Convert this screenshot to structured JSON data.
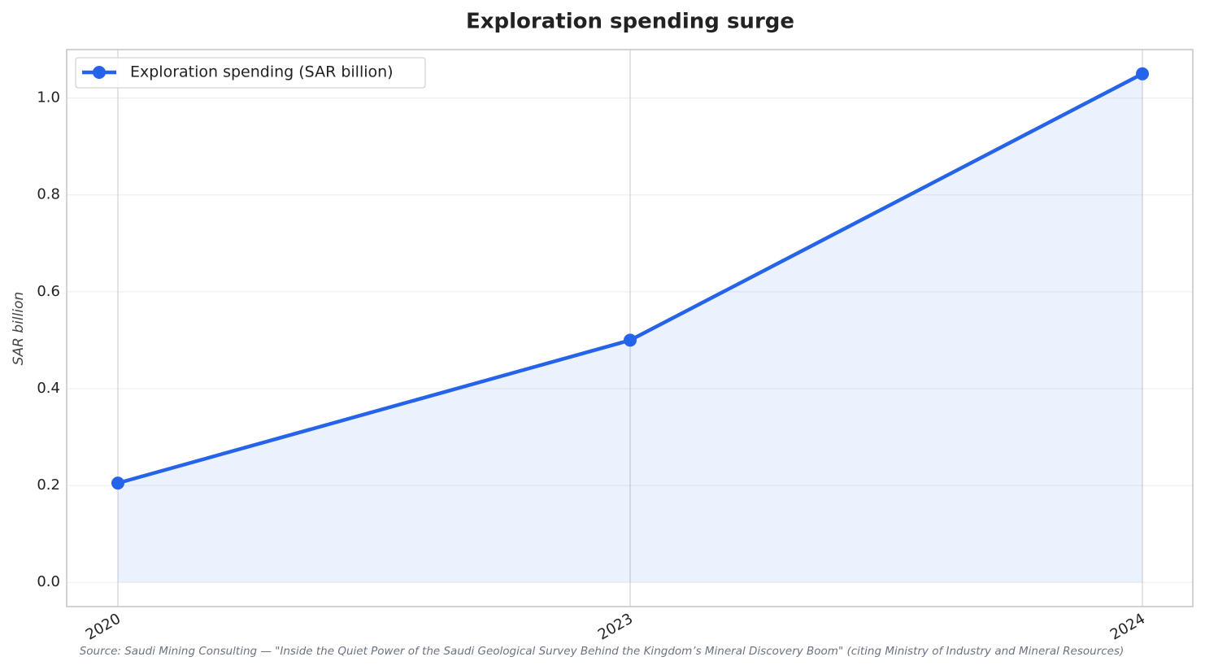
{
  "chart_data": {
    "type": "line",
    "title": "Exploration spending surge",
    "y_label": "SAR billion",
    "source": "Source: Saudi Mining Consulting — \"Inside the Quiet Power of the Saudi Geological Survey Behind the Kingdom’s Mineral Discovery Boom\" (citing Ministry of Industry and Mineral Resources)",
    "categories": [
      "2020",
      "2023",
      "2024"
    ],
    "series": [
      {
        "name": "Exploration spending (SAR billion)",
        "color": "#2563eb",
        "values": [
          0.205,
          0.5,
          1.05
        ]
      }
    ],
    "area": true,
    "ylim": [
      -0.05,
      1.1
    ],
    "yticks": [
      {
        "value": 0,
        "label": "0.0"
      },
      0.2,
      0.4,
      0.6,
      0.8,
      {
        "value": 1,
        "label": "1.0"
      }
    ],
    "grid": true,
    "legend": "upper left"
  }
}
